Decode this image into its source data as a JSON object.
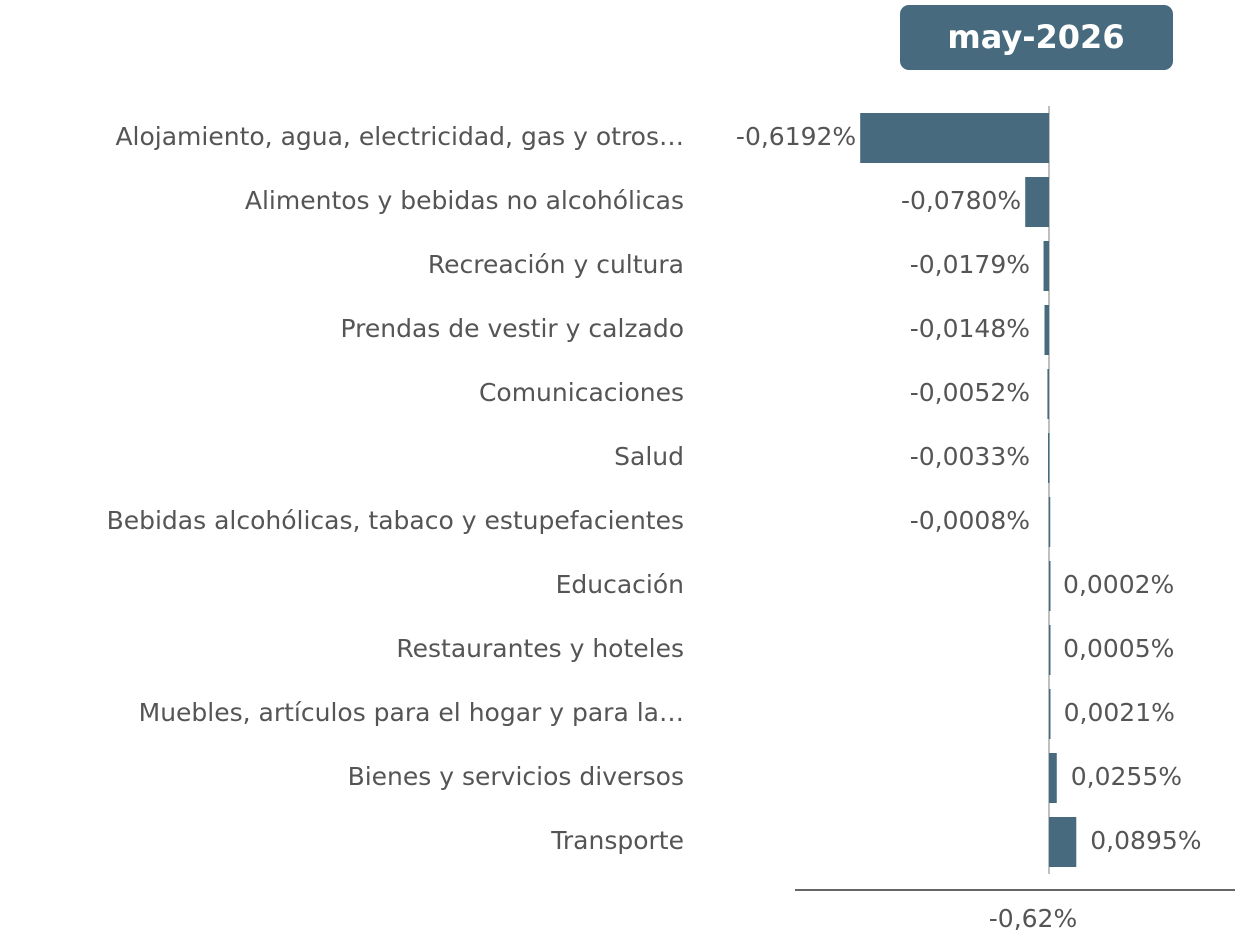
{
  "chart_data": {
    "type": "barh",
    "title": "may-2026",
    "categories": [
      "Alojamiento, agua, electricidad, gas y otros…",
      "Alimentos y bebidas no alcohólicas",
      "Recreación y cultura",
      "Prendas de vestir y calzado",
      "Comunicaciones",
      "Salud",
      "Bebidas alcohólicas, tabaco y estupefacientes",
      "Educación",
      "Restaurantes y hoteles",
      "Muebles, artículos para el hogar y para la…",
      "Bienes y servicios diversos",
      "Transporte"
    ],
    "values": [
      -0.6192,
      -0.078,
      -0.0179,
      -0.0148,
      -0.0052,
      -0.0033,
      -0.0008,
      0.0002,
      0.0005,
      0.0021,
      0.0255,
      0.0895
    ],
    "value_labels": [
      "-0,6192%",
      "-0,0780%",
      "-0,0179%",
      "-0,0148%",
      "-0,0052%",
      "-0,0033%",
      "-0,0008%",
      "0,0002%",
      "0,0005%",
      "0,0021%",
      "0,0255%",
      "0,0895%"
    ],
    "color": "#476a7e",
    "xlim": [
      -0.833,
      0.61
    ],
    "footer": "-0,62%"
  }
}
